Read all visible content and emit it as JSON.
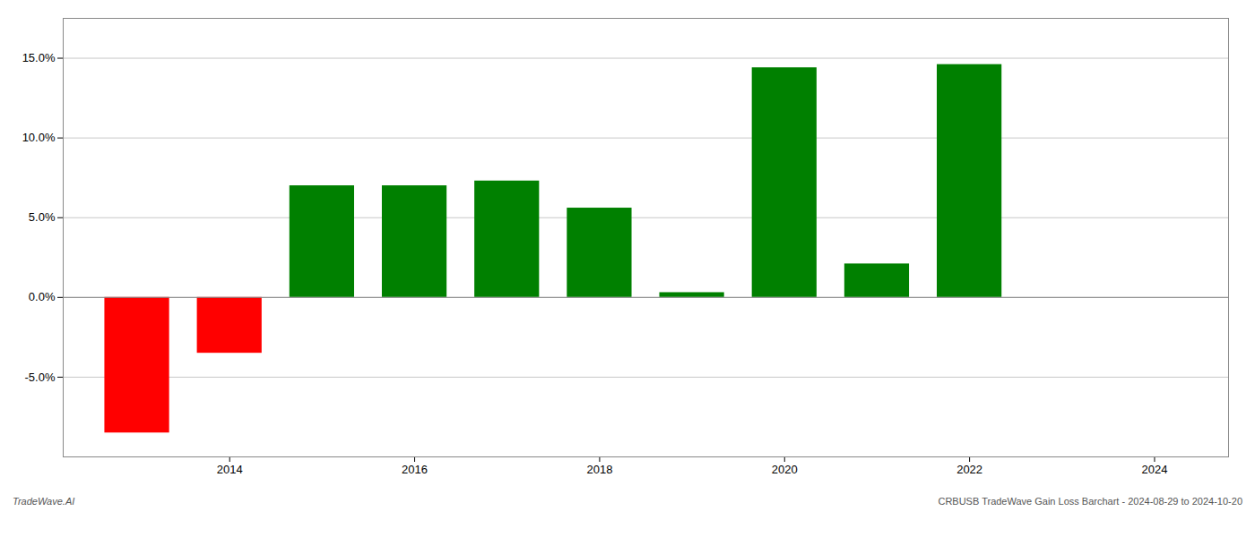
{
  "chart_data": {
    "type": "bar",
    "x": [
      2013,
      2014,
      2015,
      2016,
      2017,
      2018,
      2019,
      2020,
      2021,
      2022,
      2023
    ],
    "values": [
      -8.5,
      -3.5,
      7.0,
      7.0,
      7.3,
      5.6,
      0.3,
      14.4,
      2.1,
      14.6,
      0.0
    ],
    "colors": [
      "#ff0000",
      "#ff0000",
      "#008000",
      "#008000",
      "#008000",
      "#008000",
      "#008000",
      "#008000",
      "#008000",
      "#008000",
      "#008000"
    ],
    "xlim": [
      2012.2,
      2024.8
    ],
    "xticks": [
      2014,
      2016,
      2018,
      2020,
      2022,
      2024
    ],
    "ylim": [
      -10.0,
      17.5
    ],
    "yticks": [
      {
        "value": -5.0,
        "label": "-5.0%"
      },
      {
        "value": 0.0,
        "label": "0.0%"
      },
      {
        "value": 5.0,
        "label": "5.0%"
      },
      {
        "value": 10.0,
        "label": "10.0%"
      },
      {
        "value": 15.0,
        "label": "15.0%"
      }
    ],
    "grid": true,
    "annotations": [
      "TradeWave.AI",
      "CRBUSB TradeWave Gain Loss Barchart - 2024-08-29 to 2024-10-20"
    ]
  }
}
